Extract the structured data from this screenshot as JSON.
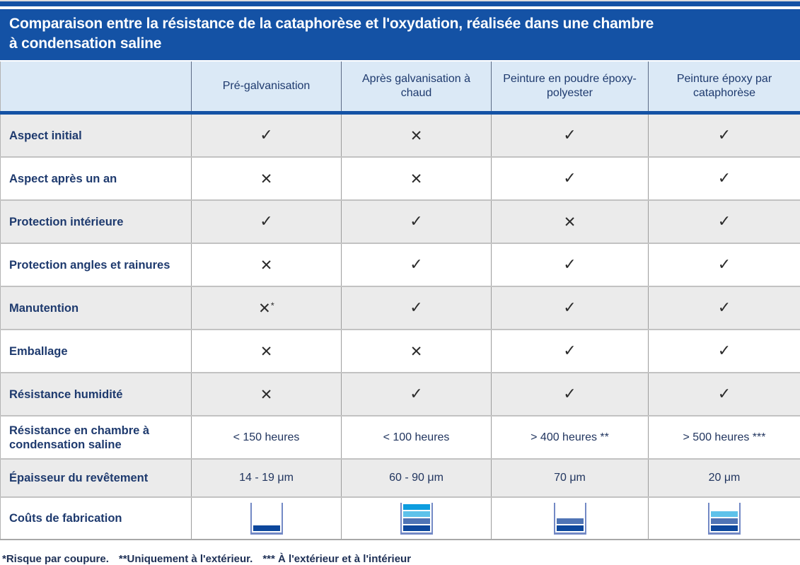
{
  "title": {
    "line1": "Comparaison entre la résistance de la cataphorèse et l'oxydation, réalisée dans une chambre",
    "line2": "à condensation saline"
  },
  "header": {
    "columns": [
      "",
      "Pré-galvanisation",
      "Après galvanisation à chaud",
      "Peinture en poudre époxy-polyester",
      "Peinture époxy par cataphorèse"
    ]
  },
  "symbols": {
    "check": "✓",
    "cross": "✕",
    "star": "*"
  },
  "rows": [
    {
      "label": "Aspect initial",
      "cells": [
        {
          "type": "check"
        },
        {
          "type": "cross"
        },
        {
          "type": "check"
        },
        {
          "type": "check"
        }
      ]
    },
    {
      "label": "Aspect après un an",
      "cells": [
        {
          "type": "cross"
        },
        {
          "type": "cross"
        },
        {
          "type": "check"
        },
        {
          "type": "check"
        }
      ]
    },
    {
      "label": "Protection intérieure",
      "cells": [
        {
          "type": "check"
        },
        {
          "type": "check"
        },
        {
          "type": "cross"
        },
        {
          "type": "check"
        }
      ]
    },
    {
      "label": "Protection angles et rainures",
      "cells": [
        {
          "type": "cross"
        },
        {
          "type": "check"
        },
        {
          "type": "check"
        },
        {
          "type": "check"
        }
      ]
    },
    {
      "label": "Manutention",
      "cells": [
        {
          "type": "cross",
          "star": true
        },
        {
          "type": "check"
        },
        {
          "type": "check"
        },
        {
          "type": "check"
        }
      ]
    },
    {
      "label": "Emballage",
      "cells": [
        {
          "type": "cross"
        },
        {
          "type": "cross"
        },
        {
          "type": "check"
        },
        {
          "type": "check"
        }
      ]
    },
    {
      "label": "Résistance humidité",
      "cells": [
        {
          "type": "cross"
        },
        {
          "type": "check"
        },
        {
          "type": "check"
        },
        {
          "type": "check"
        }
      ]
    },
    {
      "label": "Résistance en chambre à condensation saline",
      "cells": [
        {
          "type": "text",
          "value": "< 150 heures"
        },
        {
          "type": "text",
          "value": "< 100 heures"
        },
        {
          "type": "text",
          "value": "> 400 heures **"
        },
        {
          "type": "text",
          "value": "> 500 heures ***"
        }
      ]
    },
    {
      "label": "Épaisseur du revêtement",
      "cells": [
        {
          "type": "text",
          "value": "14 - 19 μm"
        },
        {
          "type": "text",
          "value": "60 - 90 μm"
        },
        {
          "type": "text",
          "value": "70 μm"
        },
        {
          "type": "text",
          "value": "20 μm"
        }
      ]
    },
    {
      "label": "Coûts de fabrication",
      "cells": [
        {
          "type": "cost",
          "level": 1
        },
        {
          "type": "cost",
          "level": 4
        },
        {
          "type": "cost",
          "level": 2
        },
        {
          "type": "cost",
          "level": 3
        }
      ]
    }
  ],
  "cost_scale": {
    "max_level": 4,
    "bar_colors_bottom_to_top": [
      "#0d479c",
      "#4f74b5",
      "#5ec2ea",
      "#0d9ddf"
    ]
  },
  "footnote": {
    "segments": [
      "*Risque par coupure.",
      "**Uniquement à l'extérieur.",
      "*** À l'extérieur et à l'intérieur"
    ]
  },
  "colors": {
    "banner_blue": "#1452a5",
    "header_bg": "#dbe9f6",
    "row_alt_gray": "#ebebeb",
    "navy_text": "#1e3a6e",
    "glyph_dark": "#2b2b2b",
    "cup_wall": "#7389c5"
  }
}
